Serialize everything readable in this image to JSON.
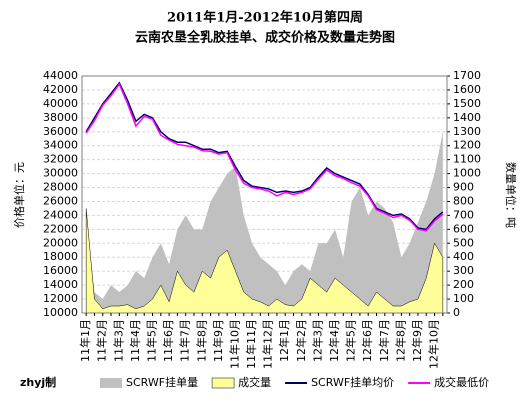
{
  "chart_data": {
    "type": "combo",
    "title": "2011年1月-2012年10月第四周",
    "subtitle": "云南农垦全乳胶挂单、成交价格及数量走势图",
    "ylabel": "价格单位：元",
    "y2label": "数量单位：吨",
    "credit": "zhyj制",
    "categories": [
      "11年1月",
      null,
      "11年2月",
      null,
      "11年3月",
      null,
      "11年4月",
      null,
      "11年5月",
      null,
      "11年6月",
      null,
      "11年7月",
      null,
      "11年8月",
      null,
      "11年9月",
      null,
      "11年10月",
      null,
      "11年11月",
      null,
      "11年12月",
      null,
      "12年1月",
      null,
      "12年2月",
      null,
      "12年3月",
      null,
      "12年4月",
      null,
      "12年5月",
      null,
      "12年6月",
      null,
      "12年7月",
      null,
      "12年8月",
      null,
      "12年9月",
      null,
      "12年10月",
      null
    ],
    "ylim": [
      10000,
      44000
    ],
    "yticks": [
      10000,
      12000,
      14000,
      16000,
      18000,
      20000,
      22000,
      24000,
      26000,
      28000,
      30000,
      32000,
      34000,
      36000,
      38000,
      40000,
      42000,
      44000
    ],
    "y2lim": [
      0,
      1700
    ],
    "y2ticks": [
      0,
      100,
      200,
      300,
      400,
      500,
      600,
      700,
      800,
      900,
      1000,
      1100,
      1200,
      1300,
      1400,
      1500,
      1600,
      1700
    ],
    "grid": true,
    "series": [
      {
        "name": "SCRWF挂单量",
        "type": "area",
        "axis": "y2",
        "color": "#c0c0c0",
        "values": [
          600,
          150,
          100,
          200,
          150,
          200,
          300,
          250,
          400,
          500,
          350,
          600,
          700,
          600,
          600,
          800,
          900,
          1000,
          1050,
          700,
          500,
          400,
          350,
          300,
          200,
          300,
          350,
          300,
          500,
          500,
          600,
          400,
          800,
          900,
          700,
          800,
          750,
          650,
          400,
          500,
          650,
          800,
          1000,
          1300
        ]
      },
      {
        "name": "成交量",
        "type": "area",
        "axis": "y2",
        "color": "#ffff99",
        "values": [
          750,
          100,
          30,
          50,
          50,
          60,
          30,
          50,
          100,
          200,
          80,
          300,
          200,
          150,
          300,
          250,
          400,
          450,
          300,
          150,
          100,
          80,
          50,
          100,
          60,
          50,
          100,
          250,
          200,
          150,
          250,
          200,
          150,
          100,
          50,
          150,
          100,
          50,
          50,
          80,
          100,
          250,
          500,
          400
        ]
      },
      {
        "name": "SCRWF挂单均价",
        "type": "line",
        "color": "#000066",
        "values": [
          36000,
          38000,
          40000,
          41500,
          43000,
          40500,
          37500,
          38500,
          38000,
          36000,
          35000,
          34500,
          34500,
          34000,
          33500,
          33500,
          33000,
          33200,
          31000,
          29000,
          28200,
          28000,
          27800,
          27300,
          27500,
          27300,
          27500,
          28000,
          29500,
          30800,
          30000,
          29500,
          29000,
          28500,
          27000,
          25000,
          24500,
          24000,
          24200,
          23500,
          22200,
          22000,
          23500,
          24500
        ]
      },
      {
        "name": "成交最低价",
        "type": "line",
        "color": "#ff00ff",
        "values": [
          35800,
          37600,
          39800,
          41200,
          42800,
          40000,
          36800,
          38200,
          37800,
          35500,
          34800,
          34200,
          34000,
          33800,
          33300,
          33200,
          32800,
          33000,
          30500,
          28600,
          28000,
          27800,
          27500,
          26800,
          27300,
          27000,
          27300,
          27800,
          29200,
          30500,
          29700,
          29300,
          28700,
          28200,
          26800,
          24800,
          24300,
          23700,
          24000,
          23300,
          22000,
          21800,
          23200,
          24200
        ]
      }
    ]
  }
}
